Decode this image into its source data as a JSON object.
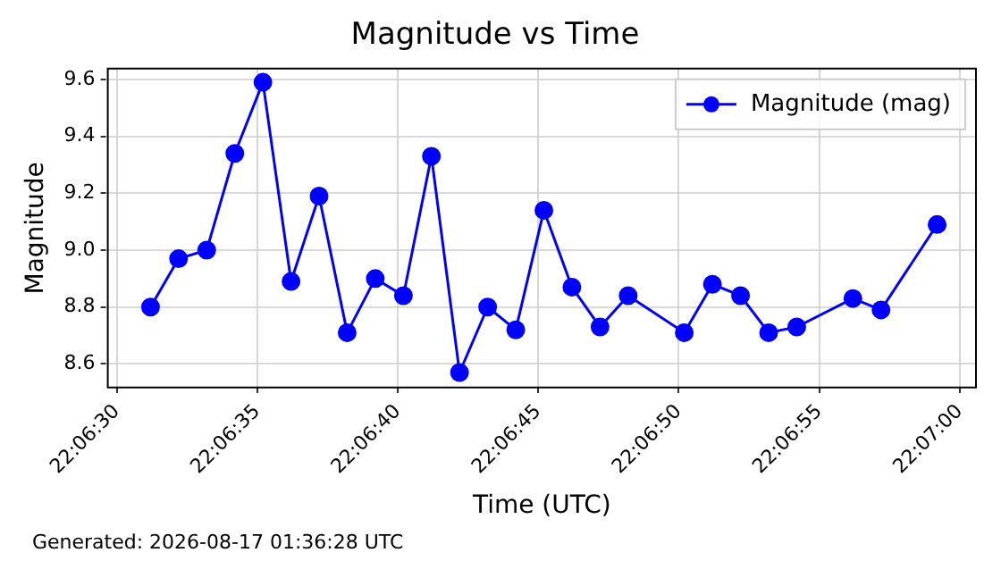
{
  "chart_data": {
    "type": "line",
    "title": "Magnitude vs Time",
    "xlabel": "Time (UTC)",
    "ylabel": "Magnitude",
    "x": [
      22.108667,
      22.108944,
      22.109222,
      22.1095,
      22.109778,
      22.110056,
      22.110333,
      22.110611,
      22.110889,
      22.111167,
      22.111444,
      22.111722,
      22.112,
      22.112278,
      22.112556,
      22.112833,
      22.113111,
      22.113389,
      22.113944,
      22.114222,
      22.1145,
      22.114778,
      22.115056,
      22.115611,
      22.115889,
      22.116444
    ],
    "series": [
      {
        "name": "Magnitude (mag)",
        "color": "#0000ff",
        "values": [
          8.8,
          8.97,
          9.0,
          9.34,
          9.59,
          8.89,
          9.19,
          8.71,
          8.9,
          8.84,
          9.33,
          8.57,
          8.8,
          8.72,
          9.14,
          8.87,
          8.73,
          8.84,
          8.71,
          8.88,
          8.84,
          8.71,
          8.73,
          8.83,
          8.79,
          9.09
        ]
      }
    ],
    "xlim": [
      22.108244,
      22.116828
    ],
    "xticks": [
      {
        "value": 22.108333,
        "label": "22:06:30"
      },
      {
        "value": 22.109722,
        "label": "22:06:35"
      },
      {
        "value": 22.111111,
        "label": "22:06:40"
      },
      {
        "value": 22.1125,
        "label": "22:06:45"
      },
      {
        "value": 22.113889,
        "label": "22:06:50"
      },
      {
        "value": 22.115278,
        "label": "22:06:55"
      },
      {
        "value": 22.116667,
        "label": "22:07:00"
      }
    ],
    "ylim": [
      8.517,
      9.638
    ],
    "yticks": [
      8.6,
      8.8,
      {
        "value": 9.0,
        "label": "9.0"
      },
      9.2,
      9.4,
      9.6
    ],
    "grid": true,
    "legend": "top right",
    "marker": "circle",
    "line_style": "solid",
    "annotations": [
      "Generated: 2026-08-17 01:36:28 UTC"
    ]
  }
}
